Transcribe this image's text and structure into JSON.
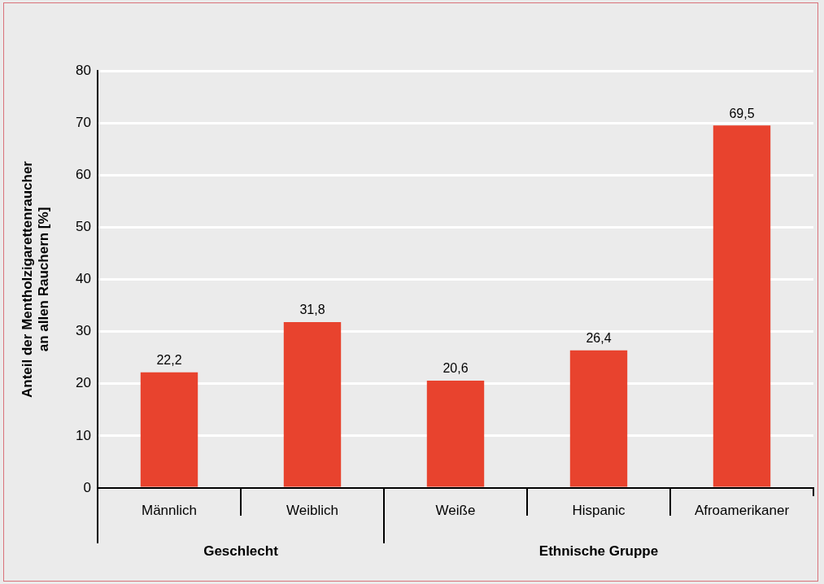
{
  "chart_data": {
    "type": "bar",
    "ylabel": "Anteil der Mentholzigarettenraucher\nan allen Rauchern [%]",
    "categories": [
      "Männlich",
      "Weiblich",
      "Weiße",
      "Hispanic",
      "Afroamerikaner"
    ],
    "values": [
      22.2,
      31.8,
      20.6,
      26.4,
      69.5
    ],
    "value_labels": [
      "22,2",
      "31,8",
      "20,6",
      "26,4",
      "69,5"
    ],
    "color": "#e8432e",
    "ylim": [
      0,
      80
    ],
    "yticks": [
      0,
      10,
      20,
      30,
      40,
      50,
      60,
      70,
      80
    ],
    "grid": "y",
    "legend": false,
    "annotations": [
      "Geschlecht",
      "Ethnische Gruppe"
    ]
  }
}
